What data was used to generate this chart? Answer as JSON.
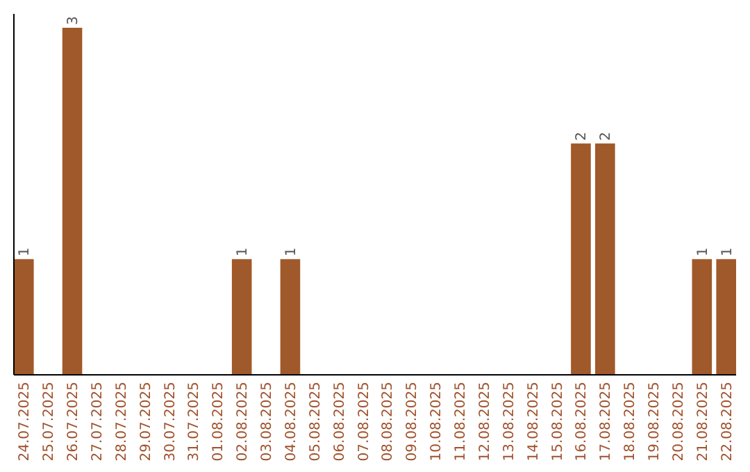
{
  "chart_data": {
    "type": "bar",
    "categories": [
      "24.07.2025",
      "25.07.2025",
      "26.07.2025",
      "27.07.2025",
      "28.07.2025",
      "29.07.2025",
      "30.07.2025",
      "31.07.2025",
      "01.08.2025",
      "02.08.2025",
      "03.08.2025",
      "04.08.2025",
      "05.08.2025",
      "06.08.2025",
      "07.08.2025",
      "08.08.2025",
      "09.08.2025",
      "10.08.2025",
      "11.08.2025",
      "12.08.2025",
      "13.08.2025",
      "14.08.2025",
      "15.08.2025",
      "16.08.2025",
      "17.08.2025",
      "18.08.2025",
      "19.08.2025",
      "20.08.2025",
      "21.08.2025",
      "22.08.2025"
    ],
    "values": [
      1,
      0,
      3,
      0,
      0,
      0,
      0,
      0,
      0,
      1,
      0,
      1,
      0,
      0,
      0,
      0,
      0,
      0,
      0,
      0,
      0,
      0,
      0,
      2,
      2,
      0,
      0,
      0,
      1,
      1
    ],
    "value_labels": [
      "1",
      null,
      "3",
      null,
      null,
      null,
      null,
      null,
      null,
      "1",
      null,
      "1",
      null,
      null,
      null,
      null,
      null,
      null,
      null,
      null,
      null,
      null,
      null,
      "2",
      "2",
      null,
      null,
      null,
      "1",
      "1"
    ],
    "color": "#a0592a",
    "tick_labels": "x"
  }
}
